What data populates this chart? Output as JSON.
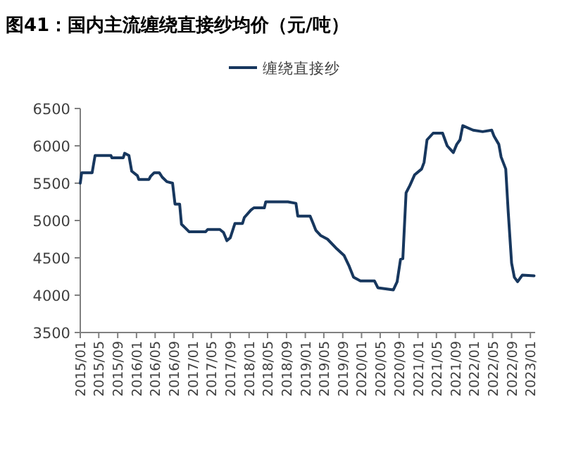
{
  "chart_data": {
    "type": "line",
    "title": "图41：国内主流缠绕直接纱均价（元/吨）",
    "legend": "top",
    "marker": "none",
    "xlim": [
      "2015-01-01",
      "2023-02-01"
    ],
    "xticks": [
      {
        "value": "2015-01",
        "label": "2015/01"
      },
      {
        "value": "2015-05",
        "label": "2015/05"
      },
      {
        "value": "2015-09",
        "label": "2015/09"
      },
      {
        "value": "2016-01",
        "label": "2016/01"
      },
      {
        "value": "2016-05",
        "label": "2016/05"
      },
      {
        "value": "2016-09",
        "label": "2016/09"
      },
      {
        "value": "2017-01",
        "label": "2017/01"
      },
      {
        "value": "2017-05",
        "label": "2017/05"
      },
      {
        "value": "2017-09",
        "label": "2017/09"
      },
      {
        "value": "2018-01",
        "label": "2018/01"
      },
      {
        "value": "2018-05",
        "label": "2018/05"
      },
      {
        "value": "2018-09",
        "label": "2018/09"
      },
      {
        "value": "2019-01",
        "label": "2019/01"
      },
      {
        "value": "2019-05",
        "label": "2019/05"
      },
      {
        "value": "2019-09",
        "label": "2019/09"
      },
      {
        "value": "2020-01",
        "label": "2020/01"
      },
      {
        "value": "2020-05",
        "label": "2020/05"
      },
      {
        "value": "2020-09",
        "label": "2020/09"
      },
      {
        "value": "2021-01",
        "label": "2021/01"
      },
      {
        "value": "2021-05",
        "label": "2021/05"
      },
      {
        "value": "2021-09",
        "label": "2021/09"
      },
      {
        "value": "2022-01",
        "label": "2022/01"
      },
      {
        "value": "2022-05",
        "label": "2022/05"
      },
      {
        "value": "2022-09",
        "label": "2022/09"
      },
      {
        "value": "2023-01",
        "label": "2023/01"
      }
    ],
    "ylim": [
      3500,
      6500
    ],
    "yticks": [
      3500,
      4000,
      4500,
      5000,
      5500,
      6000,
      6500
    ],
    "series": [
      {
        "name": "缠绕直接纱",
        "color": "#17375e",
        "x": [
          "2015-01-01",
          "2015-01-10",
          "2015-03-19",
          "2015-04-07",
          "2015-07-19",
          "2015-07-25",
          "2015-10-07",
          "2015-10-16",
          "2015-11-13",
          "2015-12-01",
          "2016-01-07",
          "2016-01-16",
          "2016-03-22",
          "2016-04-01",
          "2016-04-25",
          "2016-05-28",
          "2016-06-16",
          "2016-07-16",
          "2016-08-22",
          "2016-09-07",
          "2016-10-07",
          "2016-10-19",
          "2016-11-13",
          "2016-12-07",
          "2017-03-25",
          "2017-04-07",
          "2017-06-25",
          "2017-07-19",
          "2017-08-10",
          "2017-09-01",
          "2017-10-01",
          "2017-11-19",
          "2017-12-01",
          "2018-01-13",
          "2018-02-01",
          "2018-04-10",
          "2018-04-19",
          "2018-09-10",
          "2018-11-01",
          "2018-11-13",
          "2019-02-01",
          "2019-02-19",
          "2019-03-10",
          "2019-04-10",
          "2019-05-25",
          "2019-07-25",
          "2019-09-10",
          "2019-10-10",
          "2019-11-10",
          "2019-12-25",
          "2020-03-25",
          "2020-04-16",
          "2020-07-25",
          "2020-08-19",
          "2020-09-10",
          "2020-09-25",
          "2020-10-16",
          "2020-11-10",
          "2020-12-10",
          "2021-01-25",
          "2021-02-10",
          "2021-03-01",
          "2021-04-10",
          "2021-06-10",
          "2021-07-10",
          "2021-08-19",
          "2021-09-10",
          "2021-10-01",
          "2021-10-19",
          "2021-12-25",
          "2022-02-25",
          "2022-04-25",
          "2022-05-10",
          "2022-06-10",
          "2022-06-25",
          "2022-07-25",
          "2022-08-10",
          "2022-09-01",
          "2022-09-19",
          "2022-10-10",
          "2022-11-10",
          "2023-01-25"
        ],
        "values": [
          5500,
          5640,
          5640,
          5870,
          5870,
          5840,
          5840,
          5900,
          5870,
          5660,
          5600,
          5550,
          5550,
          5590,
          5640,
          5640,
          5580,
          5520,
          5500,
          5220,
          5220,
          4950,
          4900,
          4850,
          4850,
          4880,
          4880,
          4840,
          4730,
          4770,
          4960,
          4960,
          5040,
          5140,
          5170,
          5170,
          5250,
          5250,
          5230,
          5060,
          5060,
          4970,
          4870,
          4800,
          4750,
          4620,
          4530,
          4400,
          4240,
          4190,
          4190,
          4100,
          4070,
          4180,
          4480,
          4490,
          5370,
          5470,
          5610,
          5690,
          5780,
          6080,
          6170,
          6170,
          6000,
          5910,
          6020,
          6080,
          6270,
          6210,
          6190,
          6210,
          6130,
          6020,
          5850,
          5690,
          5120,
          4430,
          4240,
          4180,
          4270,
          4260
        ]
      }
    ]
  }
}
